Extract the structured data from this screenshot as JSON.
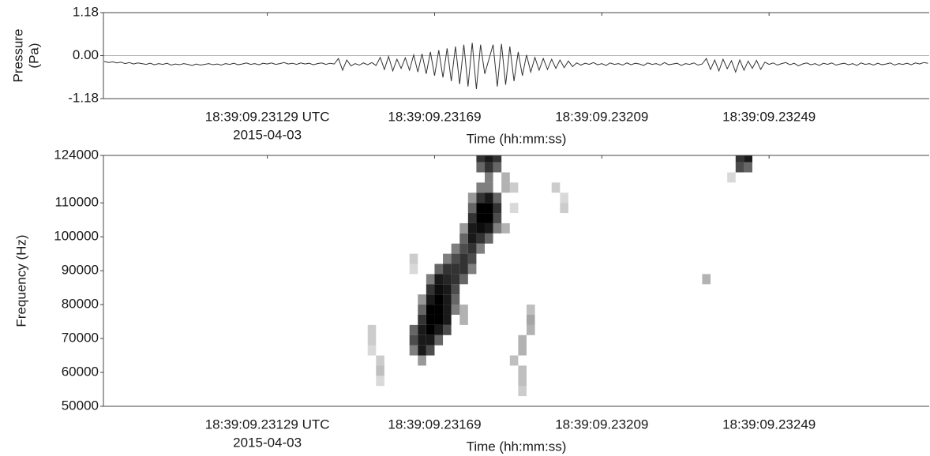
{
  "chart_data": [
    {
      "type": "line",
      "ylabel": [
        "Pressure",
        "(Pa)"
      ],
      "xlabel": "Time (hh:mm:ss)",
      "date_label": "2015-04-03",
      "color": "#333333",
      "grid": true,
      "xlim": [
        67149.230898,
        67149.232873
      ],
      "xticks": [
        {
          "value": 67149.23129,
          "label": "18:39:09.23129 UTC"
        },
        {
          "value": 67149.23169,
          "label": "18:39:09.23169"
        },
        {
          "value": 67149.23209,
          "label": "18:39:09.23209"
        },
        {
          "value": 67149.23249,
          "label": "18:39:09.23249"
        }
      ],
      "ylim": [
        -1.18,
        1.18
      ],
      "yticks": [
        1.18,
        {
          "value": 0,
          "label": "0.00"
        },
        -1.18
      ],
      "x": [
        67149.2309,
        67149.23091,
        67149.23092,
        67149.23093,
        67149.23094,
        67149.23095,
        67149.23096,
        67149.23097,
        67149.23098,
        67149.23099,
        67149.231,
        67149.23101,
        67149.23102,
        67149.23103,
        67149.23104,
        67149.23105,
        67149.23106,
        67149.23107,
        67149.23108,
        67149.23109,
        67149.2311,
        67149.23111,
        67149.23112,
        67149.23113,
        67149.23114,
        67149.23115,
        67149.23116,
        67149.23117,
        67149.23118,
        67149.23119,
        67149.2312,
        67149.23121,
        67149.23122,
        67149.23123,
        67149.23124,
        67149.23125,
        67149.23126,
        67149.23127,
        67149.23128,
        67149.23129,
        67149.2313,
        67149.23131,
        67149.23132,
        67149.23133,
        67149.23134,
        67149.23135,
        67149.23136,
        67149.23137,
        67149.23138,
        67149.23139,
        67149.2314,
        67149.23141,
        67149.23142,
        67149.23143,
        67149.23144,
        67149.23145,
        67149.23146,
        67149.23147,
        67149.23148,
        67149.23149,
        67149.2315,
        67149.23151,
        67149.23152,
        67149.23153,
        67149.23154,
        67149.23155,
        67149.23156,
        67149.23157,
        67149.23158,
        67149.23159,
        67149.2316,
        67149.23161,
        67149.23162,
        67149.23163,
        67149.23164,
        67149.23165,
        67149.23166,
        67149.23167,
        67149.23168,
        67149.23169,
        67149.2317,
        67149.23171,
        67149.23172,
        67149.23173,
        67149.23174,
        67149.23175,
        67149.23176,
        67149.23177,
        67149.23178,
        67149.23179,
        67149.2318,
        67149.23181,
        67149.23182,
        67149.23183,
        67149.23184,
        67149.23185,
        67149.23186,
        67149.23187,
        67149.23188,
        67149.23189,
        67149.2319,
        67149.23191,
        67149.23192,
        67149.23193,
        67149.23194,
        67149.23195,
        67149.23196,
        67149.23197,
        67149.23198,
        67149.23199,
        67149.232,
        67149.23201,
        67149.23202,
        67149.23203,
        67149.23204,
        67149.23205,
        67149.23206,
        67149.23207,
        67149.23208,
        67149.23209,
        67149.2321,
        67149.23211,
        67149.23212,
        67149.23213,
        67149.23214,
        67149.23215,
        67149.23216,
        67149.23217,
        67149.23218,
        67149.23219,
        67149.2322,
        67149.23221,
        67149.23222,
        67149.23223,
        67149.23224,
        67149.23225,
        67149.23226,
        67149.23227,
        67149.23228,
        67149.23229,
        67149.2323,
        67149.23231,
        67149.23232,
        67149.23233,
        67149.23234,
        67149.23235,
        67149.23236,
        67149.23237,
        67149.23238,
        67149.23239,
        67149.2324,
        67149.23241,
        67149.23242,
        67149.23243,
        67149.23244,
        67149.23245,
        67149.23246,
        67149.23247,
        67149.23248,
        67149.23249,
        67149.2325,
        67149.23251,
        67149.23252,
        67149.23253,
        67149.23254,
        67149.23255,
        67149.23256,
        67149.23257,
        67149.23258,
        67149.23259,
        67149.2326,
        67149.23261,
        67149.23262,
        67149.23263,
        67149.23264,
        67149.23265,
        67149.23266,
        67149.23267,
        67149.23268,
        67149.23269,
        67149.2327,
        67149.23271,
        67149.23272,
        67149.23273,
        67149.23274,
        67149.23275,
        67149.23276,
        67149.23277,
        67149.23278,
        67149.23279,
        67149.2328,
        67149.23281,
        67149.23282,
        67149.23283,
        67149.23284,
        67149.23285,
        67149.23286,
        67149.23287
      ],
      "values": [
        -0.16,
        -0.19,
        -0.17,
        -0.2,
        -0.18,
        -0.22,
        -0.19,
        -0.23,
        -0.2,
        -0.22,
        -0.24,
        -0.21,
        -0.25,
        -0.22,
        -0.24,
        -0.21,
        -0.26,
        -0.23,
        -0.25,
        -0.22,
        -0.24,
        -0.27,
        -0.23,
        -0.26,
        -0.24,
        -0.22,
        -0.25,
        -0.23,
        -0.26,
        -0.22,
        -0.24,
        -0.21,
        -0.25,
        -0.23,
        -0.2,
        -0.24,
        -0.22,
        -0.25,
        -0.21,
        -0.23,
        -0.2,
        -0.24,
        -0.22,
        -0.19,
        -0.23,
        -0.21,
        -0.24,
        -0.2,
        -0.23,
        -0.21,
        -0.25,
        -0.22,
        -0.2,
        -0.24,
        -0.21,
        -0.23,
        -0.08,
        -0.4,
        -0.12,
        -0.28,
        -0.22,
        -0.26,
        -0.2,
        -0.25,
        -0.19,
        -0.27,
        -0.05,
        -0.38,
        -0.02,
        -0.42,
        -0.1,
        -0.35,
        -0.06,
        -0.4,
        0.02,
        -0.45,
        0.05,
        -0.5,
        0.1,
        -0.55,
        0.15,
        -0.6,
        0.2,
        -0.7,
        0.25,
        -0.78,
        0.3,
        -0.85,
        0.35,
        -0.92,
        0.3,
        -0.5,
        -0.1,
        0.3,
        -0.85,
        0.32,
        -0.8,
        0.25,
        -0.7,
        0.1,
        -0.55,
        0.02,
        -0.45,
        -0.05,
        -0.4,
        -0.08,
        -0.38,
        -0.1,
        -0.35,
        -0.12,
        -0.33,
        -0.15,
        -0.3,
        -0.2,
        -0.26,
        -0.21,
        -0.24,
        -0.19,
        -0.25,
        -0.22,
        -0.27,
        -0.2,
        -0.24,
        -0.22,
        -0.26,
        -0.2,
        -0.25,
        -0.21,
        -0.23,
        -0.27,
        -0.2,
        -0.24,
        -0.22,
        -0.26,
        -0.19,
        -0.25,
        -0.23,
        -0.21,
        -0.27,
        -0.22,
        -0.24,
        -0.2,
        -0.26,
        -0.23,
        -0.08,
        -0.38,
        -0.12,
        -0.42,
        -0.1,
        -0.36,
        -0.14,
        -0.45,
        -0.12,
        -0.4,
        -0.15,
        -0.35,
        -0.13,
        -0.38,
        -0.18,
        -0.24,
        -0.2,
        -0.26,
        -0.22,
        -0.19,
        -0.25,
        -0.21,
        -0.28,
        -0.23,
        -0.2,
        -0.25,
        -0.22,
        -0.27,
        -0.21,
        -0.24,
        -0.2,
        -0.26,
        -0.23,
        -0.21,
        -0.25,
        -0.22,
        -0.27,
        -0.2,
        -0.24,
        -0.22,
        -0.26,
        -0.21,
        -0.25,
        -0.23,
        -0.2,
        -0.26,
        -0.22,
        -0.24,
        -0.21,
        -0.25,
        -0.2,
        -0.23,
        -0.19,
        -0.21
      ]
    },
    {
      "type": "heatmap",
      "ylabel": [
        "Frequency (Hz)"
      ],
      "xlabel": "Time (hh:mm:ss)",
      "date_label": "2015-04-03",
      "color": "#000000",
      "grid": false,
      "xlim": [
        67149.230898,
        67149.232873
      ],
      "xticks": [
        {
          "value": 67149.23129,
          "label": "18:39:09.23129 UTC"
        },
        {
          "value": 67149.23169,
          "label": "18:39:09.23169"
        },
        {
          "value": 67149.23209,
          "label": "18:39:09.23209"
        },
        {
          "value": 67149.23249,
          "label": "18:39:09.23249"
        }
      ],
      "ylim": [
        50000,
        124000
      ],
      "yticks": [
        124000,
        110000,
        100000,
        90000,
        80000,
        70000,
        60000,
        50000
      ],
      "cells": {
        "x": [
          67149.23164,
          67149.23164,
          67149.23164,
          67149.23164,
          67149.23164,
          67149.23166,
          67149.23166,
          67149.23166,
          67149.23166,
          67149.23166,
          67149.23166,
          67149.23166,
          67149.23168,
          67149.23168,
          67149.23168,
          67149.23168,
          67149.23168,
          67149.23168,
          67149.23168,
          67149.23168,
          67149.2317,
          67149.2317,
          67149.2317,
          67149.2317,
          67149.2317,
          67149.2317,
          67149.2317,
          67149.2317,
          67149.23172,
          67149.23172,
          67149.23172,
          67149.23172,
          67149.23172,
          67149.23172,
          67149.23172,
          67149.23172,
          67149.23174,
          67149.23174,
          67149.23174,
          67149.23174,
          67149.23174,
          67149.23174,
          67149.23174,
          67149.23176,
          67149.23176,
          67149.23176,
          67149.23176,
          67149.23176,
          67149.23176,
          67149.23176,
          67149.23176,
          67149.23178,
          67149.23178,
          67149.23178,
          67149.23178,
          67149.23178,
          67149.23178,
          67149.23178,
          67149.23178,
          67149.2318,
          67149.2318,
          67149.2318,
          67149.2318,
          67149.2318,
          67149.2318,
          67149.2318,
          67149.2318,
          67149.2318,
          67149.23182,
          67149.23182,
          67149.23182,
          67149.23182,
          67149.23182,
          67149.23182,
          67149.23182,
          67149.23182,
          67149.23182,
          67149.23184,
          67149.23184,
          67149.23184,
          67149.23184,
          67149.23184,
          67149.23184,
          67149.23186,
          67149.23186,
          67149.23186,
          67149.23188,
          67149.23188,
          67149.23188,
          67149.23154,
          67149.23154,
          67149.23154,
          67149.23156,
          67149.23156,
          67149.23156,
          67149.2319,
          67149.2319,
          67149.2319,
          67149.2319,
          67149.2319,
          67149.23192,
          67149.23192,
          67149.23192,
          67149.232,
          67149.232,
          67149.23198,
          67149.23242,
          67149.23242,
          67149.23244,
          67149.23244,
          67149.2324,
          67149.23234
        ],
        "y": [
          66500,
          69500,
          72500,
          90500,
          93500,
          63500,
          66500,
          69500,
          72500,
          75500,
          78500,
          81500,
          66500,
          69500,
          72500,
          75500,
          78500,
          81500,
          84500,
          87500,
          69500,
          72500,
          75500,
          78500,
          81500,
          84500,
          87500,
          90500,
          72500,
          75500,
          78500,
          81500,
          84500,
          87500,
          90500,
          93500,
          78500,
          81500,
          84500,
          87500,
          90500,
          93500,
          96500,
          75500,
          78500,
          87500,
          90500,
          93500,
          96500,
          99500,
          102500,
          90500,
          93500,
          96500,
          99500,
          102500,
          105500,
          108500,
          111500,
          96500,
          99500,
          102500,
          105500,
          108500,
          111500,
          114500,
          120500,
          123500,
          99500,
          102500,
          105500,
          108500,
          111500,
          114500,
          117500,
          120500,
          123500,
          102500,
          105500,
          108500,
          111500,
          120500,
          123500,
          102500,
          114500,
          117500,
          114500,
          108500,
          63500,
          72500,
          69500,
          66500,
          63500,
          60500,
          57500,
          54500,
          57500,
          60500,
          66500,
          69500,
          72500,
          75500,
          78500,
          108500,
          111500,
          114500,
          120500,
          123500,
          120500,
          123500,
          117500,
          87500
        ],
        "values": [
          0.5,
          0.7,
          0.6,
          0.15,
          0.2,
          0.4,
          0.9,
          0.9,
          0.9,
          0.8,
          0.6,
          0.4,
          0.7,
          0.9,
          1,
          1,
          1,
          0.9,
          0.8,
          0.5,
          0.6,
          0.9,
          1,
          1,
          1,
          0.95,
          0.9,
          0.6,
          0.7,
          0.9,
          0.9,
          0.9,
          0.9,
          0.85,
          0.8,
          0.5,
          0.5,
          0.6,
          0.7,
          0.8,
          0.8,
          0.7,
          0.5,
          0.3,
          0.3,
          0.6,
          0.8,
          0.8,
          0.7,
          0.6,
          0.4,
          0.5,
          0.7,
          0.8,
          0.9,
          0.9,
          0.8,
          0.6,
          0.4,
          0.5,
          0.8,
          0.95,
          1,
          1,
          0.8,
          0.5,
          0.6,
          0.8,
          0.6,
          0.9,
          1,
          1,
          0.9,
          0.5,
          0.5,
          0.8,
          0.9,
          0.5,
          0.7,
          0.8,
          0.6,
          0.6,
          0.8,
          0.3,
          0.3,
          0.3,
          0.2,
          0.15,
          0.25,
          0.2,
          0.2,
          0.15,
          0.2,
          0.25,
          0.15,
          0.2,
          0.25,
          0.25,
          0.3,
          0.3,
          0.3,
          0.35,
          0.25,
          0.2,
          0.15,
          0.2,
          0.7,
          0.8,
          0.6,
          0.9,
          0.15,
          0.3
        ]
      }
    }
  ]
}
